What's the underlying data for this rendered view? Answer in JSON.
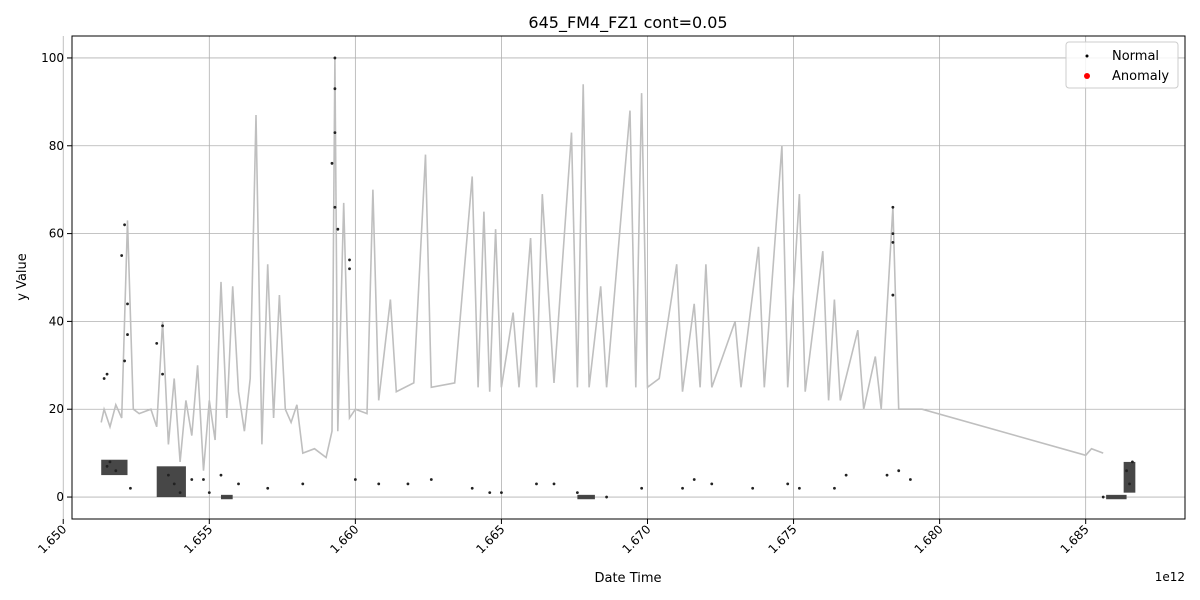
{
  "chart_data": {
    "type": "scatter",
    "title": "645_FM4_FZ1 cont=0.05",
    "xlabel": "Date Time",
    "ylabel": "y Value",
    "x_offset_label": "1e12",
    "xlim": [
      1.6503,
      1.6884
    ],
    "ylim": [
      -5,
      105
    ],
    "x_ticks": [
      1.65,
      1.655,
      1.66,
      1.665,
      1.67,
      1.675,
      1.68,
      1.685
    ],
    "x_tick_labels": [
      "1.650",
      "1.655",
      "1.660",
      "1.665",
      "1.670",
      "1.675",
      "1.680",
      "1.685"
    ],
    "y_ticks": [
      0,
      20,
      40,
      60,
      80,
      100
    ],
    "y_tick_labels": [
      "0",
      "20",
      "40",
      "60",
      "80",
      "100"
    ],
    "grid": true,
    "legend_position": "top-right",
    "legend": [
      {
        "label": "Normal",
        "color": "#000000"
      },
      {
        "label": "Anomaly",
        "color": "#ff0000"
      }
    ],
    "line_color": "#bfbfbf",
    "line": [
      [
        1.6513,
        17
      ],
      [
        1.6514,
        20
      ],
      [
        1.6516,
        16
      ],
      [
        1.6518,
        21
      ],
      [
        1.652,
        18
      ],
      [
        1.6522,
        63
      ],
      [
        1.6524,
        20
      ],
      [
        1.6526,
        19
      ],
      [
        1.653,
        20
      ],
      [
        1.6532,
        16
      ],
      [
        1.6534,
        40
      ],
      [
        1.6536,
        12
      ],
      [
        1.6538,
        27
      ],
      [
        1.654,
        8
      ],
      [
        1.6542,
        22
      ],
      [
        1.6544,
        14
      ],
      [
        1.6546,
        30
      ],
      [
        1.6548,
        6
      ],
      [
        1.655,
        22
      ],
      [
        1.6552,
        13
      ],
      [
        1.6554,
        49
      ],
      [
        1.6556,
        18
      ],
      [
        1.6558,
        48
      ],
      [
        1.656,
        24
      ],
      [
        1.6562,
        15
      ],
      [
        1.6564,
        27
      ],
      [
        1.6566,
        87
      ],
      [
        1.6568,
        12
      ],
      [
        1.657,
        53
      ],
      [
        1.6572,
        18
      ],
      [
        1.6574,
        46
      ],
      [
        1.6576,
        20
      ],
      [
        1.6578,
        17
      ],
      [
        1.658,
        21
      ],
      [
        1.6582,
        10
      ],
      [
        1.6586,
        11
      ],
      [
        1.659,
        9
      ],
      [
        1.6592,
        15
      ],
      [
        1.6593,
        100
      ],
      [
        1.6594,
        15
      ],
      [
        1.6596,
        67
      ],
      [
        1.6598,
        18
      ],
      [
        1.66,
        20
      ],
      [
        1.6604,
        19
      ],
      [
        1.6606,
        70
      ],
      [
        1.6608,
        22
      ],
      [
        1.6612,
        45
      ],
      [
        1.6614,
        24
      ],
      [
        1.662,
        26
      ],
      [
        1.6624,
        78
      ],
      [
        1.6626,
        25
      ],
      [
        1.6634,
        26
      ],
      [
        1.664,
        73
      ],
      [
        1.6642,
        25
      ],
      [
        1.6644,
        65
      ],
      [
        1.6646,
        24
      ],
      [
        1.6648,
        61
      ],
      [
        1.665,
        25
      ],
      [
        1.6654,
        42
      ],
      [
        1.6656,
        25
      ],
      [
        1.666,
        59
      ],
      [
        1.6662,
        25
      ],
      [
        1.6664,
        69
      ],
      [
        1.6668,
        26
      ],
      [
        1.6674,
        83
      ],
      [
        1.6676,
        25
      ],
      [
        1.6678,
        94
      ],
      [
        1.668,
        25
      ],
      [
        1.6684,
        48
      ],
      [
        1.6686,
        25
      ],
      [
        1.6694,
        88
      ],
      [
        1.6696,
        25
      ],
      [
        1.6698,
        92
      ],
      [
        1.67,
        25
      ],
      [
        1.6704,
        27
      ],
      [
        1.671,
        53
      ],
      [
        1.6712,
        24
      ],
      [
        1.6716,
        44
      ],
      [
        1.6718,
        25
      ],
      [
        1.672,
        53
      ],
      [
        1.6722,
        25
      ],
      [
        1.673,
        40
      ],
      [
        1.6732,
        25
      ],
      [
        1.6738,
        57
      ],
      [
        1.674,
        25
      ],
      [
        1.6746,
        80
      ],
      [
        1.6748,
        25
      ],
      [
        1.6752,
        69
      ],
      [
        1.6754,
        24
      ],
      [
        1.676,
        56
      ],
      [
        1.6762,
        22
      ],
      [
        1.6764,
        45
      ],
      [
        1.6766,
        22
      ],
      [
        1.6772,
        38
      ],
      [
        1.6774,
        20
      ],
      [
        1.6778,
        32
      ],
      [
        1.678,
        20
      ],
      [
        1.6784,
        66
      ],
      [
        1.6786,
        20
      ],
      [
        1.679,
        20
      ],
      [
        1.6794,
        20
      ],
      [
        1.685,
        9.5
      ],
      [
        1.6852,
        11
      ],
      [
        1.6856,
        10
      ]
    ],
    "normal_points": [
      [
        1.6514,
        27
      ],
      [
        1.6515,
        28
      ],
      [
        1.6515,
        7
      ],
      [
        1.6516,
        8
      ],
      [
        1.6518,
        6
      ],
      [
        1.652,
        55
      ],
      [
        1.6521,
        62
      ],
      [
        1.6521,
        31
      ],
      [
        1.6522,
        44
      ],
      [
        1.6522,
        37
      ],
      [
        1.6523,
        2
      ],
      [
        1.6532,
        35
      ],
      [
        1.6534,
        39
      ],
      [
        1.6534,
        28
      ],
      [
        1.6536,
        5
      ],
      [
        1.6538,
        3
      ],
      [
        1.654,
        1
      ],
      [
        1.6544,
        4
      ],
      [
        1.6548,
        4
      ],
      [
        1.655,
        1
      ],
      [
        1.6554,
        5
      ],
      [
        1.656,
        3
      ],
      [
        1.657,
        2
      ],
      [
        1.6582,
        3
      ],
      [
        1.6592,
        76
      ],
      [
        1.6593,
        100
      ],
      [
        1.6593,
        93
      ],
      [
        1.6593,
        83
      ],
      [
        1.6593,
        66
      ],
      [
        1.6594,
        61
      ],
      [
        1.6598,
        54
      ],
      [
        1.6598,
        52
      ],
      [
        1.66,
        4
      ],
      [
        1.6608,
        3
      ],
      [
        1.6618,
        3
      ],
      [
        1.6626,
        4
      ],
      [
        1.664,
        2
      ],
      [
        1.6646,
        1
      ],
      [
        1.665,
        1
      ],
      [
        1.6662,
        3
      ],
      [
        1.6668,
        3
      ],
      [
        1.6676,
        1
      ],
      [
        1.6686,
        0
      ],
      [
        1.6698,
        2
      ],
      [
        1.6712,
        2
      ],
      [
        1.6716,
        4
      ],
      [
        1.6722,
        3
      ],
      [
        1.6736,
        2
      ],
      [
        1.6748,
        3
      ],
      [
        1.6752,
        2
      ],
      [
        1.6764,
        2
      ],
      [
        1.6768,
        5
      ],
      [
        1.6782,
        5
      ],
      [
        1.6784,
        66
      ],
      [
        1.6784,
        58
      ],
      [
        1.6784,
        46
      ],
      [
        1.6784,
        60
      ],
      [
        1.6786,
        6
      ],
      [
        1.679,
        4
      ],
      [
        1.6856,
        0
      ],
      [
        1.6864,
        6
      ],
      [
        1.6865,
        3
      ],
      [
        1.6866,
        8
      ]
    ],
    "normal_clusters": [
      {
        "x_from": 1.6513,
        "x_to": 1.6522,
        "y_from": 5,
        "y_to": 8.5
      },
      {
        "x_from": 1.6532,
        "x_to": 1.6542,
        "y_from": 0,
        "y_to": 7
      },
      {
        "x_from": 1.6554,
        "x_to": 1.6558,
        "y_from": -0.5,
        "y_to": 0.5
      },
      {
        "x_from": 1.6676,
        "x_to": 1.6682,
        "y_from": -0.5,
        "y_to": 0.5
      },
      {
        "x_from": 1.6857,
        "x_to": 1.6864,
        "y_from": -0.5,
        "y_to": 0.5
      },
      {
        "x_from": 1.6863,
        "x_to": 1.6867,
        "y_from": 1,
        "y_to": 8
      }
    ],
    "anomaly_points": []
  }
}
